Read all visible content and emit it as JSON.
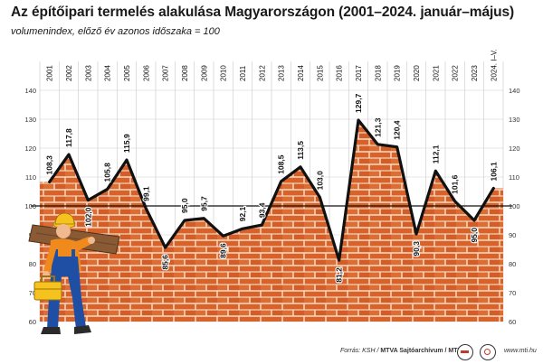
{
  "header": {
    "title": "Az építőipari termelés alakulása Magyarországon (2001–2024. január–május)",
    "subtitle": "volumenindex, előző év azonos időszaka = 100"
  },
  "footer": {
    "source_prefix": "Forrás: KSH / ",
    "source_bold": "MTVA Sajtóarchívum / MTI",
    "website": "www.mti.hu"
  },
  "colors": {
    "brick": "#d9622b",
    "brick_light": "#e27a41",
    "mortar": "#f3d6bc",
    "line": "#111111",
    "grid": "#cfcfcf",
    "reference_line": "#111111",
    "worker_shirt": "#f08a1c",
    "worker_overalls": "#1f4fa5",
    "worker_helmet": "#f6c21d"
  },
  "illustration": {
    "worker_icon": "construction-worker-carrying-plank-icon"
  },
  "chart_data": {
    "type": "area",
    "title": "Az építőipari termelés alakulása Magyarországon (2001–2024. január–május)",
    "subtitle": "volumenindex, előző év azonos időszaka = 100",
    "categories": [
      "2001",
      "2002",
      "2003",
      "2004",
      "2005",
      "2006",
      "2007",
      "2008",
      "2009",
      "2010",
      "2011",
      "2012",
      "2013",
      "2014",
      "2015",
      "2016",
      "2017",
      "2018",
      "2019",
      "2020",
      "2021",
      "2022",
      "2023",
      "2024. I–V."
    ],
    "values": [
      108.3,
      117.8,
      102.0,
      105.8,
      115.9,
      99.1,
      85.6,
      95.0,
      95.7,
      89.6,
      92.1,
      93.4,
      108.5,
      113.5,
      103.0,
      81.2,
      129.7,
      121.3,
      120.4,
      90.3,
      112.1,
      101.6,
      95.0,
      106.1
    ],
    "labels": [
      "108,3",
      "117,8",
      "102,0",
      "105,8",
      "115,9",
      "99,1",
      "85,6",
      "95,0",
      "95,7",
      "89,6",
      "92,1",
      "93,4",
      "108,5",
      "113,5",
      "103,0",
      "81,2",
      "129,7",
      "121,3",
      "120,4",
      "90,3",
      "112,1",
      "101,6",
      "95,0",
      "106,1"
    ],
    "ylim": [
      60,
      140
    ],
    "yticks": [
      60,
      70,
      80,
      90,
      100,
      110,
      120,
      130,
      140
    ],
    "reference_line": 100,
    "grid": true,
    "fill": "brick-pattern"
  }
}
